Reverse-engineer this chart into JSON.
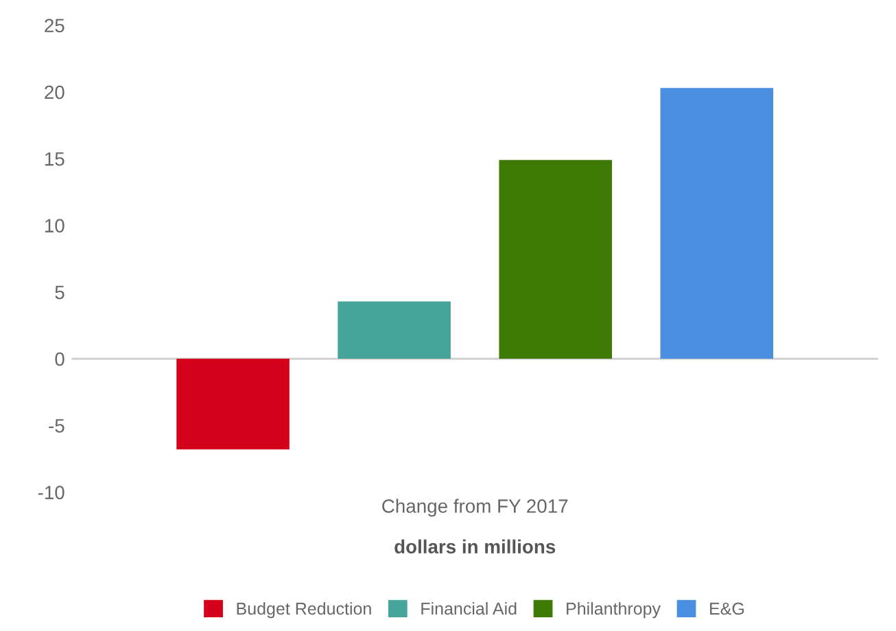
{
  "chart_data": {
    "type": "bar",
    "categories": [
      "Change from FY 2017"
    ],
    "xlabel": "dollars in millions",
    "series": [
      {
        "name": "Budget Reduction",
        "color": "#d50019",
        "values": [
          -6.8
        ]
      },
      {
        "name": "Financial Aid",
        "color": "#46a49a",
        "values": [
          4.3
        ]
      },
      {
        "name": "Philanthropy",
        "color": "#3f7a06",
        "values": [
          14.9
        ]
      },
      {
        "name": "E&G",
        "color": "#4a8fe0",
        "values": [
          20.3
        ]
      }
    ],
    "ylim": [
      -10,
      25
    ],
    "yticks": [
      -10,
      -5,
      0,
      5,
      10,
      15,
      20,
      25
    ],
    "ref_lines": [
      {
        "axis": "y",
        "value": 0,
        "color": "#cccccc"
      }
    ],
    "legend": "bottom"
  }
}
